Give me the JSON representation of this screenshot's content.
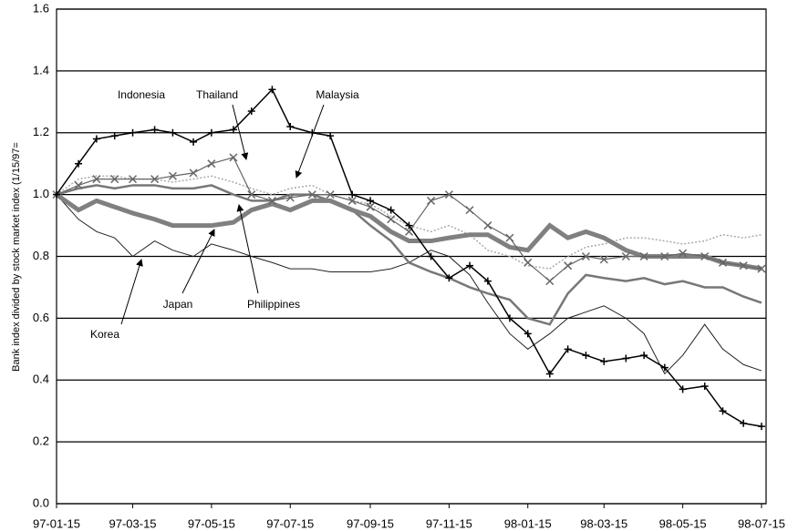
{
  "chart_data": {
    "type": "line",
    "y_label": "Bank index divided by stock market index (1/15/97=",
    "x": [
      "97-01-15",
      "97-02-01",
      "97-02-15",
      "97-03-01",
      "97-03-15",
      "97-04-01",
      "97-04-15",
      "97-05-01",
      "97-05-15",
      "97-06-01",
      "97-06-15",
      "97-07-01",
      "97-07-15",
      "97-08-01",
      "97-08-15",
      "97-09-01",
      "97-09-15",
      "97-10-01",
      "97-10-15",
      "97-11-01",
      "97-11-15",
      "97-12-01",
      "97-12-15",
      "98-01-01",
      "98-01-15",
      "98-02-01",
      "98-02-15",
      "98-03-01",
      "98-03-15",
      "98-04-01",
      "98-04-15",
      "98-05-01",
      "98-05-15",
      "98-06-01",
      "98-06-15",
      "98-07-01",
      "98-07-15"
    ],
    "xlim": [
      "97-01-15",
      "98-07-15"
    ],
    "xticks": [
      "97-01-15",
      "97-03-15",
      "97-05-15",
      "97-07-15",
      "97-09-15",
      "97-11-15",
      "98-01-15",
      "98-03-15",
      "98-05-15",
      "98-07-15"
    ],
    "ylim": [
      0,
      1.6
    ],
    "yticks": [
      {
        "value": 0,
        "label": "0.0"
      },
      0.2,
      0.4,
      0.6,
      0.8,
      {
        "value": 1,
        "label": "1.0"
      },
      1.2,
      1.4,
      1.6
    ],
    "grid": true,
    "series": [
      {
        "name": "Korea",
        "color": "#222222",
        "values": [
          1.0,
          0.92,
          0.88,
          0.86,
          0.8,
          0.85,
          0.82,
          0.8,
          0.84,
          0.82,
          0.8,
          0.78,
          0.76,
          0.76,
          0.75,
          0.75,
          0.75,
          0.76,
          0.78,
          0.82,
          0.8,
          0.74,
          0.65,
          0.55,
          0.5,
          0.55,
          0.6,
          0.62,
          0.64,
          0.6,
          0.55,
          0.42,
          0.48,
          0.58,
          0.5,
          0.45,
          0.43
        ]
      },
      {
        "name": "Malaysia",
        "color": "#aaaaaa",
        "values": [
          1.0,
          1.05,
          1.06,
          1.06,
          1.05,
          1.05,
          1.04,
          1.05,
          1.06,
          1.04,
          1.02,
          1.0,
          1.02,
          1.03,
          1.0,
          0.98,
          0.97,
          0.93,
          0.9,
          0.88,
          0.9,
          0.87,
          0.82,
          0.8,
          0.77,
          0.76,
          0.8,
          0.83,
          0.84,
          0.86,
          0.86,
          0.85,
          0.84,
          0.85,
          0.87,
          0.86,
          0.87
        ]
      },
      {
        "name": "Philippines",
        "color": "#777777",
        "values": [
          1.0,
          1.02,
          1.03,
          1.02,
          1.03,
          1.03,
          1.02,
          1.02,
          1.03,
          1.0,
          0.98,
          0.98,
          1.0,
          1.0,
          0.98,
          0.95,
          0.9,
          0.85,
          0.78,
          0.75,
          0.73,
          0.7,
          0.68,
          0.66,
          0.6,
          0.58,
          0.68,
          0.74,
          0.73,
          0.72,
          0.73,
          0.71,
          0.72,
          0.7,
          0.7,
          0.67,
          0.65
        ]
      },
      {
        "name": "Japan",
        "color": "#808080",
        "values": [
          1.0,
          0.95,
          0.98,
          0.96,
          0.94,
          0.92,
          0.9,
          0.9,
          0.9,
          0.91,
          0.95,
          0.97,
          0.95,
          0.98,
          0.98,
          0.95,
          0.93,
          0.88,
          0.85,
          0.85,
          0.86,
          0.87,
          0.87,
          0.83,
          0.82,
          0.9,
          0.86,
          0.88,
          0.86,
          0.82,
          0.8,
          0.8,
          0.8,
          0.8,
          0.78,
          0.77,
          0.76
        ]
      },
      {
        "name": "Thailand",
        "color": "#666666",
        "values": [
          1.0,
          1.03,
          1.05,
          1.05,
          1.05,
          1.05,
          1.06,
          1.07,
          1.1,
          1.12,
          1.0,
          0.98,
          0.99,
          1.0,
          1.0,
          0.98,
          0.96,
          0.92,
          0.88,
          0.98,
          1.0,
          0.95,
          0.9,
          0.86,
          0.78,
          0.72,
          0.77,
          0.8,
          0.79,
          0.8,
          0.8,
          0.8,
          0.81,
          0.8,
          0.78,
          0.77,
          0.76
        ]
      },
      {
        "name": "Indonesia",
        "color": "#000000",
        "values": [
          1.0,
          1.1,
          1.18,
          1.19,
          1.2,
          1.21,
          1.2,
          1.17,
          1.2,
          1.21,
          1.27,
          1.34,
          1.22,
          1.2,
          1.19,
          1.0,
          0.98,
          0.95,
          0.9,
          0.8,
          0.73,
          0.77,
          0.72,
          0.6,
          0.55,
          0.42,
          0.5,
          0.48,
          0.46,
          0.47,
          0.48,
          0.44,
          0.37,
          0.38,
          0.3,
          0.26,
          0.25
        ]
      }
    ]
  }
}
